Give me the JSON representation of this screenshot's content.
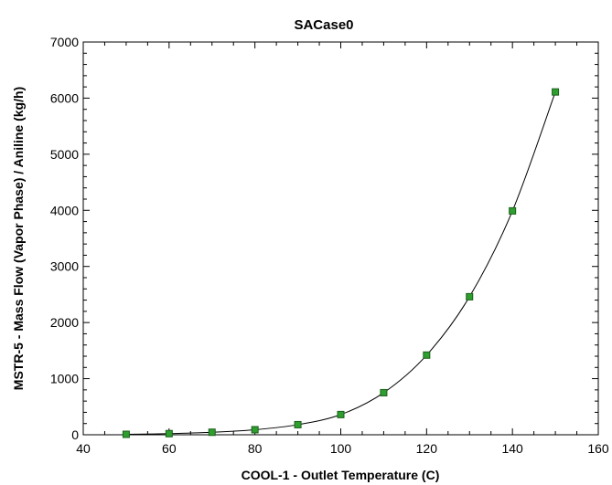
{
  "chart_data": {
    "type": "line",
    "title": "SACase0",
    "xlabel": "COOL-1 - Outlet Temperature (C)",
    "ylabel": "MSTR-5 - Mass Flow (Vapor Phase) / Aniline (kg/h)",
    "xlim": [
      40,
      160
    ],
    "ylim": [
      0,
      7000
    ],
    "x_ticks": [
      40,
      60,
      80,
      100,
      120,
      140,
      160
    ],
    "y_ticks": [
      0,
      1000,
      2000,
      3000,
      4000,
      5000,
      6000,
      7000
    ],
    "grid": false,
    "legend": "none",
    "series": [
      {
        "x": [
          50,
          60,
          70,
          80,
          90,
          100,
          110,
          120,
          130,
          140,
          150
        ],
        "y": [
          8,
          20,
          45,
          90,
          180,
          360,
          750,
          1420,
          2460,
          3990,
          6110
        ],
        "line_color": "#000000",
        "marker_color": "#2e9e2e",
        "marker_edge": "#1a5f1a",
        "marker": "square"
      }
    ]
  }
}
